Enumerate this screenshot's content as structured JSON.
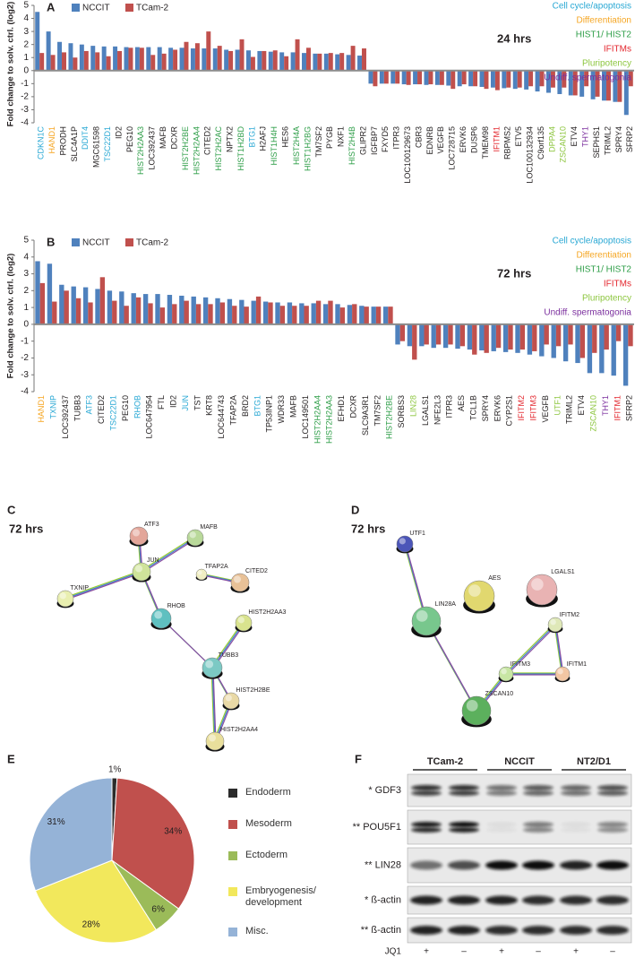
{
  "chart_data": [
    {
      "panel": "A",
      "type": "bar",
      "timepoint": "24 hrs",
      "ylabel": "Fold change to solv. ctrl. (log2)",
      "ylim": [
        -4,
        5
      ],
      "yticks": [
        -4,
        -3,
        -2,
        -1,
        0,
        1,
        2,
        3,
        4,
        5
      ],
      "categories": [
        "CDKN1C",
        "HAND1",
        "PRODH",
        "SLC4A1P",
        "DDIT4",
        "MGC61598",
        "TSC22D1",
        "ID2",
        "PEG10",
        "HIST2H2AA3",
        "LOC392437",
        "MAFB",
        "DCXR",
        "HIST2H2BE",
        "HIST2H2AA4",
        "CITED2",
        "HIST2H2AC",
        "NPTX2",
        "HIST1H2BD",
        "BTG1",
        "H2AFJ",
        "HIST1H4H",
        "HES6",
        "HIST2H4A",
        "HIST1H2BG",
        "TM7SF2",
        "PYGB",
        "NXF1",
        "HIST2H4B",
        "GLIPR2",
        "IGFBP7",
        "FXYD5",
        "ITPR3",
        "LOC100129673",
        "CBR3",
        "EDNRB",
        "VEGFB",
        "LOC728715",
        "ERVK6",
        "DUSP6",
        "TMEM98",
        "IFITM1",
        "RBPMS2",
        "ETV5",
        "LOC100132934",
        "C9orf135",
        "DPPA4",
        "ZSCAN10",
        "ETV4",
        "THY1",
        "SEPHS1",
        "TRIML2",
        "SPRY4",
        "SFRP2"
      ],
      "label_colors": [
        "#29a8d4",
        "#f5a623",
        "#231f20",
        "#231f20",
        "#29a8d4",
        "#231f20",
        "#29a8d4",
        "#231f20",
        "#231f20",
        "#2e9e48",
        "#231f20",
        "#231f20",
        "#231f20",
        "#2e9e48",
        "#2e9e48",
        "#231f20",
        "#2e9e48",
        "#231f20",
        "#2e9e48",
        "#29a8d4",
        "#231f20",
        "#2e9e48",
        "#231f20",
        "#2e9e48",
        "#2e9e48",
        "#231f20",
        "#231f20",
        "#231f20",
        "#2e9e48",
        "#231f20",
        "#231f20",
        "#231f20",
        "#231f20",
        "#231f20",
        "#231f20",
        "#231f20",
        "#231f20",
        "#231f20",
        "#231f20",
        "#231f20",
        "#231f20",
        "#e3262d",
        "#231f20",
        "#231f20",
        "#231f20",
        "#231f20",
        "#8dc63f",
        "#8dc63f",
        "#231f20",
        "#7b2f9e",
        "#231f20",
        "#231f20",
        "#231f20",
        "#231f20"
      ],
      "series": [
        {
          "name": "NCCIT",
          "color": "#4f81bd",
          "values": [
            4.5,
            3.0,
            2.2,
            2.1,
            2.0,
            1.9,
            1.85,
            1.85,
            1.8,
            1.8,
            1.8,
            1.8,
            1.75,
            1.75,
            1.7,
            1.7,
            1.7,
            1.6,
            1.6,
            1.55,
            1.5,
            1.45,
            1.4,
            1.4,
            1.35,
            1.3,
            1.3,
            1.25,
            1.2,
            1.15,
            -1.0,
            -1.0,
            -1.0,
            -1.05,
            -1.05,
            -1.1,
            -1.1,
            -1.15,
            -1.2,
            -1.2,
            -1.25,
            -1.3,
            -1.35,
            -1.4,
            -1.45,
            -1.6,
            -1.7,
            -1.8,
            -1.9,
            -2.0,
            -2.2,
            -2.3,
            -2.4,
            -3.4
          ]
        },
        {
          "name": "TCam-2",
          "color": "#c0504d",
          "values": [
            1.35,
            1.2,
            1.4,
            1.0,
            1.5,
            1.4,
            1.1,
            1.5,
            1.75,
            1.75,
            1.2,
            1.3,
            1.6,
            2.2,
            2.1,
            3.0,
            1.9,
            1.5,
            2.4,
            1.05,
            1.5,
            1.55,
            1.1,
            2.4,
            1.75,
            1.3,
            1.35,
            1.35,
            1.9,
            1.7,
            -1.2,
            -1.0,
            -1.0,
            -1.1,
            -1.05,
            -1.05,
            -1.1,
            -1.4,
            -1.05,
            -1.2,
            -1.4,
            -1.5,
            -1.3,
            -1.3,
            -1.2,
            -1.2,
            -1.3,
            -1.3,
            -1.9,
            -1.2,
            -2.0,
            -2.3,
            -2.4,
            -1.2
          ]
        }
      ],
      "groups": [
        {
          "name": "Cell cycle/apoptosis",
          "color": "#29a8d4"
        },
        {
          "name": "Differentiation",
          "color": "#f5a623"
        },
        {
          "name": "HIST1/ HIST2",
          "color": "#2e9e48"
        },
        {
          "name": "IFITMs",
          "color": "#e3262d"
        },
        {
          "name": "Pluripotency",
          "color": "#8dc63f"
        },
        {
          "name": "Undiff. spermatogonia",
          "color": "#7b2f9e"
        }
      ]
    },
    {
      "panel": "B",
      "type": "bar",
      "timepoint": "72 hrs",
      "ylabel": "Fold change to solv. ctrl. (log2)",
      "ylim": [
        -4,
        5
      ],
      "yticks": [
        -4,
        -3,
        -2,
        -1,
        0,
        1,
        2,
        3,
        4,
        5
      ],
      "categories": [
        "HAND1",
        "TXNIP",
        "LOC392437",
        "TUBB3",
        "ATF3",
        "CITED2",
        "TSC22D1",
        "PEG10",
        "RHOB",
        "LOC647954",
        "FTL",
        "ID2",
        "JUN",
        "TST",
        "KRT8",
        "LOC644743",
        "TFAP2A",
        "BRD2",
        "BTG1",
        "TP53INP1",
        "WDR33",
        "MAFB",
        "LOC149501",
        "HIST2H2AA4",
        "HIST2H2AA3",
        "EFHD1",
        "DCXR",
        "SLC9A3R1",
        "TM7SF2",
        "HIST2H2BE",
        "SORBS3",
        "LIN28",
        "LGALS1",
        "NFE2L3",
        "ITPR3",
        "AES",
        "TCL1B",
        "SPRY4",
        "ERVK6",
        "CYP2S1",
        "IFITM2",
        "IFITM3",
        "VEGFB",
        "UTF1",
        "TRIML2",
        "ETV4",
        "ZSCAN10",
        "THY1",
        "IFITM1",
        "SFRP2"
      ],
      "label_colors": [
        "#f5a623",
        "#29a8d4",
        "#231f20",
        "#231f20",
        "#29a8d4",
        "#231f20",
        "#29a8d4",
        "#231f20",
        "#29a8d4",
        "#231f20",
        "#231f20",
        "#231f20",
        "#29a8d4",
        "#231f20",
        "#231f20",
        "#231f20",
        "#231f20",
        "#231f20",
        "#29a8d4",
        "#231f20",
        "#231f20",
        "#231f20",
        "#231f20",
        "#2e9e48",
        "#2e9e48",
        "#231f20",
        "#231f20",
        "#231f20",
        "#231f20",
        "#2e9e48",
        "#231f20",
        "#8dc63f",
        "#231f20",
        "#231f20",
        "#231f20",
        "#231f20",
        "#231f20",
        "#231f20",
        "#231f20",
        "#231f20",
        "#e3262d",
        "#e3262d",
        "#231f20",
        "#8dc63f",
        "#231f20",
        "#231f20",
        "#8dc63f",
        "#7b2f9e",
        "#e3262d",
        "#231f20"
      ],
      "series": [
        {
          "name": "NCCIT",
          "color": "#4f81bd",
          "values": [
            3.75,
            3.6,
            2.35,
            2.25,
            2.2,
            2.1,
            2.0,
            1.95,
            1.85,
            1.8,
            1.8,
            1.75,
            1.7,
            1.65,
            1.6,
            1.55,
            1.5,
            1.45,
            1.4,
            1.35,
            1.3,
            1.3,
            1.25,
            1.25,
            1.2,
            1.2,
            1.15,
            1.1,
            1.05,
            1.05,
            -1.2,
            -1.3,
            -1.3,
            -1.4,
            -1.4,
            -1.45,
            -1.5,
            -1.55,
            -1.6,
            -1.65,
            -1.7,
            -1.8,
            -1.9,
            -2.0,
            -2.2,
            -2.3,
            -2.9,
            -2.9,
            -3.05,
            -3.65
          ]
        },
        {
          "name": "TCam-2",
          "color": "#c0504d",
          "values": [
            2.45,
            1.35,
            2.0,
            1.55,
            1.3,
            2.8,
            1.4,
            1.1,
            1.6,
            1.25,
            1.0,
            1.2,
            1.4,
            1.2,
            1.2,
            1.3,
            1.1,
            1.05,
            1.65,
            1.3,
            1.1,
            1.1,
            1.1,
            1.4,
            1.4,
            1.0,
            1.2,
            1.05,
            1.05,
            1.05,
            -1.0,
            -2.1,
            -1.2,
            -1.2,
            -1.2,
            -1.3,
            -1.8,
            -1.7,
            -1.4,
            -1.5,
            -1.5,
            -1.6,
            -1.2,
            -1.3,
            -1.2,
            -2.0,
            -1.7,
            -1.5,
            -1.0,
            -1.3
          ]
        }
      ],
      "groups": [
        {
          "name": "Cell cycle/apoptosis",
          "color": "#29a8d4"
        },
        {
          "name": "Differentiation",
          "color": "#f5a623"
        },
        {
          "name": "HIST1/ HIST2",
          "color": "#2e9e48"
        },
        {
          "name": "IFITMs",
          "color": "#e3262d"
        },
        {
          "name": "Pluripotency",
          "color": "#8dc63f"
        },
        {
          "name": "Undiff. spermatogonia",
          "color": "#7b2f9e"
        }
      ]
    },
    {
      "panel": "E",
      "type": "pie",
      "categories": [
        "Endoderm",
        "Mesoderm",
        "Ectoderm",
        "Embryogenesis/ development",
        "Misc."
      ],
      "values": [
        1,
        34,
        6,
        28,
        31
      ],
      "value_labels": [
        "1%",
        "34%",
        "6%",
        "28%",
        "31%"
      ],
      "colors": [
        "#2b2b2b",
        "#c0504d",
        "#9bbb59",
        "#f2e85c",
        "#95b3d7"
      ]
    }
  ],
  "networks": [
    {
      "panel": "C",
      "timepoint": "72 hrs",
      "nodes": [
        "ATF3",
        "MAFB",
        "JUN",
        "TFAP2A",
        "CITED2",
        "TXNIP",
        "RHOB",
        "HIST2H2AA3",
        "TUBB3",
        "HIST2H2BE",
        "HIST2H2AA4"
      ]
    },
    {
      "panel": "D",
      "timepoint": "72 hrs",
      "nodes": [
        "UTF1",
        "AES",
        "LGALS1",
        "LIN28A",
        "IFITM2",
        "IFITM3",
        "IFITM1",
        "ZSCAN10"
      ]
    }
  ],
  "blot": {
    "panel": "F",
    "groups": [
      "TCam-2",
      "NCCIT",
      "NT2/D1"
    ],
    "rows": [
      "* GDF3",
      "** POU5F1",
      "** LIN28",
      "* ß-actin",
      "** ß-actin"
    ],
    "treatment_label": "JQ1",
    "treatment": [
      "+",
      "–",
      "+",
      "–",
      "+",
      "–"
    ]
  }
}
